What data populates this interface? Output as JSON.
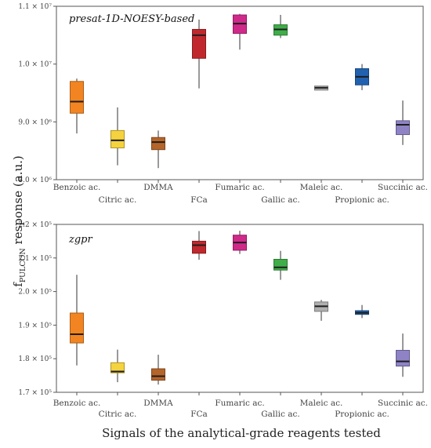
{
  "figure": {
    "ylabel_main": "f",
    "ylabel_sub": "PULCON",
    "ylabel_rest": " response (a.u.)",
    "xlabel": "Signals of the analytical-grade reagents tested"
  },
  "chart_data": [
    {
      "type": "box",
      "title": "presat-1D-NOESY-based",
      "ylim": [
        8000000,
        11000000
      ],
      "yticks": [
        {
          "value": 8000000,
          "label": "8.0 × 10⁶"
        },
        {
          "value": 9000000,
          "label": "9.0 × 10⁶"
        },
        {
          "value": 10000000,
          "label": "1.0 × 10⁷"
        },
        {
          "value": 11000000,
          "label": "1.1 × 10⁷"
        }
      ],
      "categories": [
        "Benzoic ac.",
        "Citric ac.",
        "DMMA",
        "FCa",
        "Fumaric ac.",
        "Gallic ac.",
        "Maleic ac.",
        "Propionic ac.",
        "Succinic ac."
      ],
      "colors": [
        "#f28522",
        "#f5d33f",
        "#b5652a",
        "#c0282d",
        "#cf2a8a",
        "#3fae49",
        "#b0b0b0",
        "#2062b0",
        "#8f83c6"
      ],
      "series": [
        {
          "min": 8800000,
          "q1": 9150000,
          "median": 9350000,
          "q3": 9700000,
          "max": 9750000
        },
        {
          "min": 8250000,
          "q1": 8550000,
          "median": 8680000,
          "q3": 8850000,
          "max": 9250000
        },
        {
          "min": 8200000,
          "q1": 8520000,
          "median": 8650000,
          "q3": 8730000,
          "max": 8850000
        },
        {
          "min": 9580000,
          "q1": 10100000,
          "median": 10500000,
          "q3": 10600000,
          "max": 10770000
        },
        {
          "min": 10250000,
          "q1": 10530000,
          "median": 10700000,
          "q3": 10850000,
          "max": 10870000
        },
        {
          "min": 10450000,
          "q1": 10500000,
          "median": 10600000,
          "q3": 10680000,
          "max": 10850000
        },
        {
          "min": 9550000,
          "q1": 9550000,
          "median": 9590000,
          "q3": 9620000,
          "max": 9620000
        },
        {
          "min": 9550000,
          "q1": 9640000,
          "median": 9780000,
          "q3": 9920000,
          "max": 10000000
        },
        {
          "min": 8600000,
          "q1": 8780000,
          "median": 8950000,
          "q3": 9020000,
          "max": 9370000
        }
      ]
    },
    {
      "type": "box",
      "title": "zgpr",
      "ylim": [
        170000,
        220000
      ],
      "yticks": [
        {
          "value": 170000,
          "label": "1.7 × 10⁵"
        },
        {
          "value": 180000,
          "label": "1.8 × 10⁵"
        },
        {
          "value": 190000,
          "label": "1.9 × 10⁵"
        },
        {
          "value": 200000,
          "label": "2.0 × 10⁵"
        },
        {
          "value": 210000,
          "label": "2.1 × 10⁵"
        },
        {
          "value": 220000,
          "label": "2.2 × 10⁵"
        }
      ],
      "categories": [
        "Benzoic ac.",
        "Citric ac.",
        "DMMA",
        "FCa",
        "Fumaric ac.",
        "Gallic ac.",
        "Maleic ac.",
        "Propionic ac.",
        "Succinic ac."
      ],
      "colors": [
        "#f28522",
        "#f5d33f",
        "#b5652a",
        "#c0282d",
        "#cf2a8a",
        "#3fae49",
        "#b0b0b0",
        "#2062b0",
        "#8f83c6"
      ],
      "series": [
        {
          "min": 178000,
          "q1": 184700,
          "median": 187300,
          "q3": 193600,
          "max": 205000
        },
        {
          "min": 173000,
          "q1": 175800,
          "median": 176200,
          "q3": 178800,
          "max": 182700
        },
        {
          "min": 172300,
          "q1": 173600,
          "median": 174800,
          "q3": 177000,
          "max": 181200
        },
        {
          "min": 209500,
          "q1": 211400,
          "median": 213800,
          "q3": 215000,
          "max": 218000
        },
        {
          "min": 211200,
          "q1": 212300,
          "median": 214600,
          "q3": 216800,
          "max": 218100
        },
        {
          "min": 203500,
          "q1": 206400,
          "median": 207200,
          "q3": 209600,
          "max": 212100
        },
        {
          "min": 191300,
          "q1": 194100,
          "median": 195600,
          "q3": 196900,
          "max": 197500
        },
        {
          "min": 192100,
          "q1": 193200,
          "median": 193700,
          "q3": 194300,
          "max": 196000
        },
        {
          "min": 174600,
          "q1": 177800,
          "median": 179200,
          "q3": 182500,
          "max": 187500
        }
      ]
    }
  ]
}
